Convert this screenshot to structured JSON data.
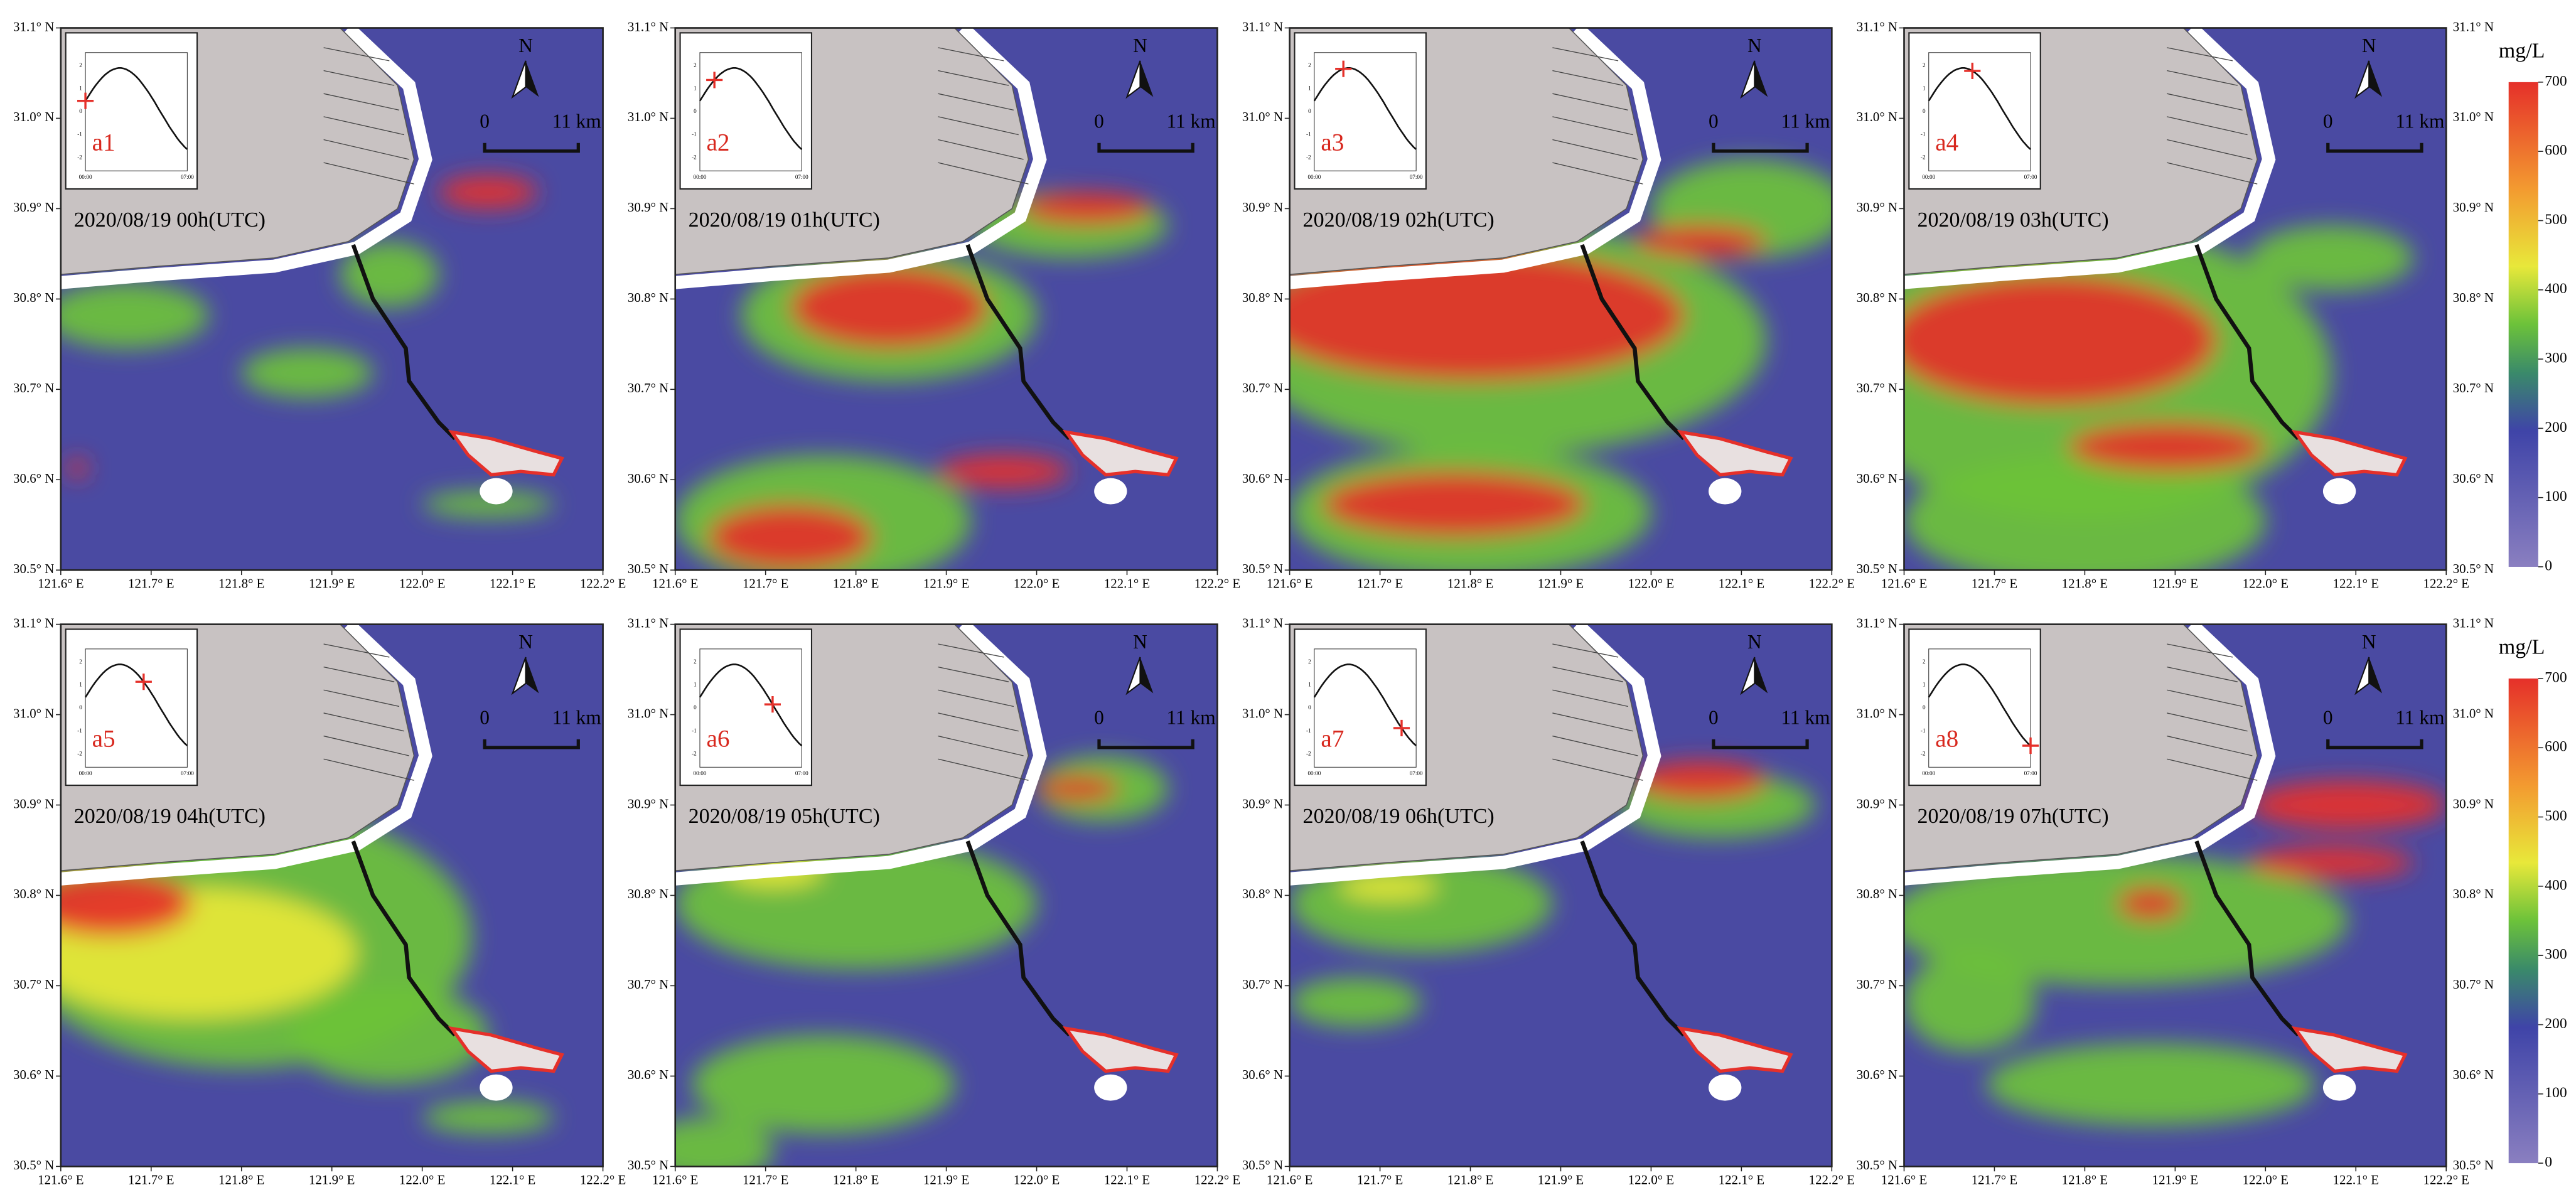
{
  "panels": [
    {
      "label": "a1",
      "time": "2020/08/19 00h(UTC)"
    },
    {
      "label": "a2",
      "time": "2020/08/19 01h(UTC)"
    },
    {
      "label": "a3",
      "time": "2020/08/19 02h(UTC)"
    },
    {
      "label": "a4",
      "time": "2020/08/19 03h(UTC)"
    },
    {
      "label": "a5",
      "time": "2020/08/19 04h(UTC)"
    },
    {
      "label": "a6",
      "time": "2020/08/19 05h(UTC)"
    },
    {
      "label": "a7",
      "time": "2020/08/19 06h(UTC)"
    },
    {
      "label": "a8",
      "time": "2020/08/19 07h(UTC)"
    }
  ],
  "axes": {
    "lon_ticks": [
      "121.6° E",
      "121.7° E",
      "121.8° E",
      "121.9° E",
      "122.0° E",
      "122.1° E",
      "122.2° E"
    ],
    "lat_ticks": [
      "31.1° N",
      "31.0° N",
      "30.9° N",
      "30.8° N",
      "30.7° N",
      "30.6° N",
      "30.5° N"
    ]
  },
  "inset": {
    "x_labels": [
      "00:00",
      "07:00"
    ],
    "y_labels": [
      "2",
      "1",
      "0",
      "-1",
      "-2"
    ]
  },
  "scale_bar": {
    "north": "N",
    "start": "0",
    "end": "11 km"
  },
  "colorbar": {
    "unit": "mg/L",
    "ticks": [
      0,
      100,
      200,
      300,
      400,
      500,
      600,
      700
    ]
  }
}
